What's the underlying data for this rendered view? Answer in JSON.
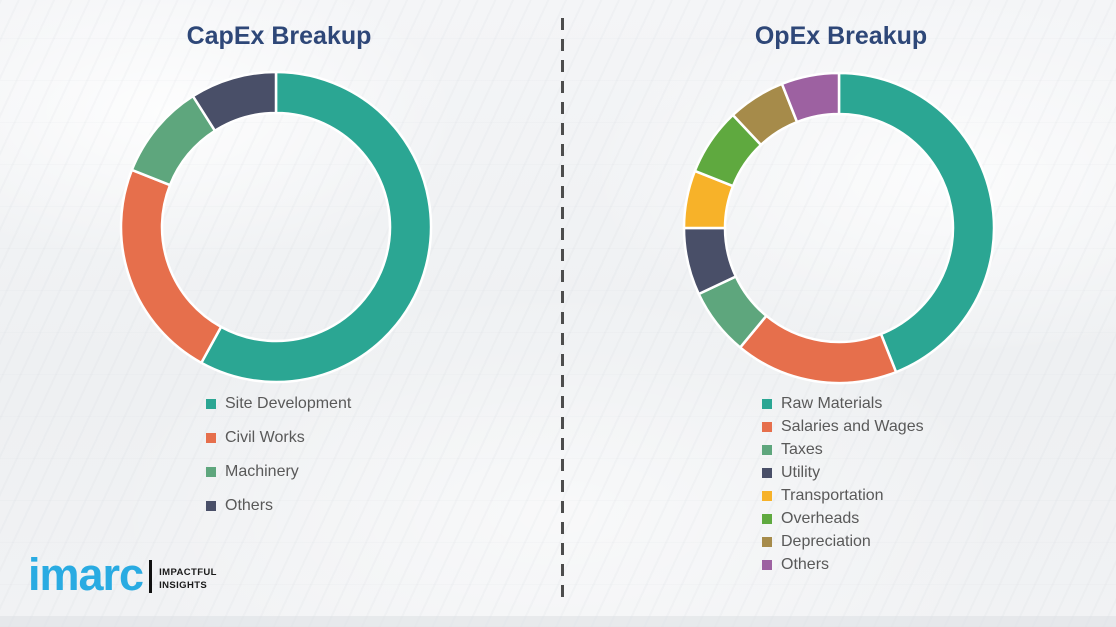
{
  "chart_data": [
    {
      "type": "pie",
      "style": "donut",
      "title": "CapEx Breakup",
      "categories": [
        "Site Development",
        "Civil Works",
        "Machinery",
        "Others"
      ],
      "values": [
        58,
        23,
        10,
        9
      ],
      "colors": [
        "#2BA693",
        "#E66F4C",
        "#5EA67D",
        "#494F68"
      ],
      "legend_position": "bottom",
      "start_angle_deg": 0,
      "direction": "clockwise"
    },
    {
      "type": "pie",
      "style": "donut",
      "title": "OpEx Breakup",
      "categories": [
        "Raw Materials",
        "Salaries and Wages",
        "Taxes",
        "Utility",
        "Transportation",
        "Overheads",
        "Depreciation",
        "Others"
      ],
      "values": [
        44,
        17,
        7,
        7,
        6,
        7,
        6,
        6
      ],
      "colors": [
        "#2BA693",
        "#E66F4C",
        "#5EA67D",
        "#494F68",
        "#F7B229",
        "#5FA93F",
        "#A68B4A",
        "#9D61A1"
      ],
      "legend_position": "bottom",
      "start_angle_deg": 0,
      "direction": "clockwise"
    }
  ],
  "logo": {
    "brand": "imarc",
    "tagline_line1": "IMPACTFUL",
    "tagline_line2": "INSIGHTS",
    "brand_color": "#29ABE2"
  },
  "styles": {
    "title_color": "#2E4778",
    "legend_text_color": "#595959",
    "background": "#EFF1F3",
    "divider_color": "#4D4D4D",
    "segment_gap_color": "#FFFFFF"
  }
}
